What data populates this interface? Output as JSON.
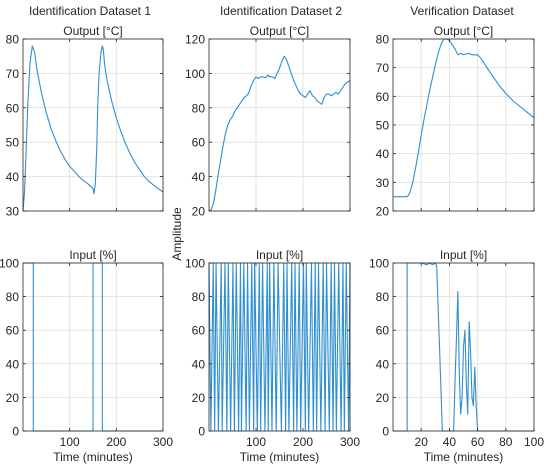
{
  "figure": {
    "shared_ylabel": "Amplitude",
    "column_titles": [
      "Identification Dataset 1",
      "Identification Dataset 2",
      "Verification Dataset"
    ]
  },
  "colors": {
    "line": "#2f8fd0",
    "grid": "#e3e3e3",
    "axes": "#262626"
  },
  "chart_data": [
    {
      "type": "line",
      "title": "Output [°C]",
      "xlabel": "",
      "ylabel": "",
      "xlim": [
        0,
        300
      ],
      "ylim": [
        30,
        80
      ],
      "xticks": [
        100,
        200,
        300
      ],
      "yticks": [
        30,
        40,
        50,
        60,
        70,
        80
      ],
      "xtick_labels_shown": false,
      "grid": true,
      "series": [
        {
          "x": [
            0,
            3,
            6,
            10,
            15,
            20,
            25,
            30,
            40,
            50,
            60,
            70,
            80,
            90,
            100,
            110,
            120,
            130,
            140,
            150,
            152,
            155,
            158,
            160,
            163,
            167,
            170,
            172,
            175,
            180,
            190,
            200,
            210,
            220,
            230,
            240,
            250,
            260,
            270,
            280,
            290,
            300
          ],
          "y": [
            30,
            35,
            45,
            60,
            73,
            78,
            76,
            71,
            64,
            58.5,
            54,
            50.5,
            47.5,
            45,
            43,
            41.5,
            40,
            38.8,
            37.8,
            36.5,
            35,
            38,
            48,
            60,
            70,
            76,
            78,
            77,
            72.5,
            68,
            62,
            57,
            53,
            49.5,
            46.5,
            44,
            42,
            40,
            38.6,
            37.5,
            36.5,
            35.5
          ]
        }
      ]
    },
    {
      "type": "line",
      "title": "Output [°C]",
      "xlabel": "",
      "ylabel": "",
      "xlim": [
        0,
        300
      ],
      "ylim": [
        20,
        120
      ],
      "xticks": [
        100,
        200,
        300
      ],
      "yticks": [
        20,
        40,
        60,
        80,
        100,
        120
      ],
      "xtick_labels_shown": false,
      "grid": true,
      "series": [
        {
          "x": [
            0,
            5,
            10,
            15,
            20,
            25,
            30,
            35,
            40,
            45,
            50,
            55,
            60,
            65,
            70,
            75,
            80,
            85,
            90,
            95,
            100,
            105,
            110,
            115,
            120,
            125,
            130,
            135,
            140,
            145,
            150,
            155,
            160,
            165,
            170,
            175,
            180,
            185,
            190,
            195,
            200,
            205,
            210,
            215,
            220,
            225,
            230,
            235,
            240,
            245,
            250,
            255,
            260,
            265,
            270,
            275,
            280,
            285,
            290,
            295,
            300
          ],
          "y": [
            20,
            21,
            25,
            33,
            42,
            50,
            58,
            65,
            70,
            73,
            75,
            78,
            80,
            82,
            84,
            86,
            87,
            89,
            93,
            96,
            98,
            97,
            98,
            98,
            97.5,
            99,
            98,
            98,
            97,
            100,
            103,
            107,
            110,
            108,
            104,
            100,
            96,
            93,
            90,
            88,
            87,
            86,
            88,
            90,
            87,
            86,
            84,
            83,
            82,
            86,
            88,
            88,
            87,
            88,
            89,
            88,
            90,
            92,
            94,
            95,
            96
          ]
        }
      ]
    },
    {
      "type": "line",
      "title": "Output [°C]",
      "xlabel": "",
      "ylabel": "",
      "xlim": [
        0,
        100
      ],
      "ylim": [
        20,
        80
      ],
      "xticks": [
        20,
        40,
        60,
        80,
        100
      ],
      "yticks": [
        20,
        30,
        40,
        50,
        60,
        70,
        80
      ],
      "xtick_labels_shown": false,
      "grid": true,
      "series": [
        {
          "x": [
            0,
            5,
            10,
            11,
            12,
            14,
            16,
            18,
            20,
            22,
            24,
            26,
            28,
            30,
            32,
            34,
            36,
            38,
            40,
            42,
            44,
            46,
            48,
            50,
            52,
            54,
            56,
            58,
            60,
            62,
            64,
            66,
            70,
            75,
            80,
            85,
            90,
            95,
            100
          ],
          "y": [
            25,
            25,
            25,
            25.5,
            26.5,
            30,
            35,
            40.5,
            46.5,
            52,
            57,
            62,
            66.5,
            71,
            75,
            78,
            80,
            80,
            79.5,
            78,
            76.5,
            74.5,
            75,
            74.5,
            74.8,
            75,
            74.5,
            74.5,
            74.5,
            73.5,
            72,
            70.5,
            67.5,
            64,
            61,
            58.5,
            56.5,
            54.5,
            52.5
          ]
        }
      ]
    },
    {
      "type": "line",
      "title": "Input [%]",
      "xlabel": "Time (minutes)",
      "ylabel": "",
      "xlim": [
        0,
        300
      ],
      "ylim": [
        0,
        100
      ],
      "xticks": [
        100,
        200,
        300
      ],
      "yticks": [
        0,
        20,
        40,
        60,
        80,
        100
      ],
      "grid": true,
      "series": [
        {
          "x": [
            0,
            22,
            22,
            150,
            150,
            170,
            170,
            300
          ],
          "y": [
            100,
            100,
            0,
            0,
            100,
            100,
            0,
            0
          ]
        }
      ]
    },
    {
      "type": "line",
      "title": "Input [%]",
      "xlabel": "Time (minutes)",
      "ylabel": "",
      "xlim": [
        0,
        300
      ],
      "ylim": [
        0,
        100
      ],
      "xticks": [
        100,
        200,
        300
      ],
      "yticks": [
        0,
        20,
        40,
        60,
        80,
        100
      ],
      "grid": true,
      "series": [
        {
          "x": [
            0,
            4,
            9,
            12,
            15,
            20,
            26,
            28,
            34,
            38,
            41,
            46,
            51,
            54,
            58,
            63,
            67,
            69,
            74,
            79,
            82,
            86,
            91,
            95,
            97,
            103,
            107,
            110,
            114,
            119,
            124,
            126,
            129,
            134,
            138,
            143,
            147,
            154,
            159,
            163,
            166,
            170,
            176,
            180,
            183,
            187,
            192,
            195,
            201,
            205,
            207,
            212,
            218,
            222,
            226,
            229,
            233,
            238,
            243,
            247,
            250,
            256,
            260,
            264,
            267,
            271,
            276,
            281,
            285,
            288,
            292,
            297,
            300
          ],
          "y": [
            100,
            0,
            100,
            0,
            100,
            0,
            100,
            0,
            100,
            0,
            100,
            0,
            100,
            0,
            100,
            0,
            100,
            0,
            100,
            0,
            100,
            0,
            100,
            0,
            100,
            0,
            100,
            0,
            100,
            0,
            100,
            0,
            100,
            0,
            100,
            0,
            100,
            0,
            100,
            0,
            100,
            0,
            100,
            0,
            100,
            0,
            100,
            0,
            100,
            0,
            100,
            0,
            100,
            0,
            100,
            0,
            100,
            0,
            100,
            0,
            100,
            0,
            100,
            0,
            100,
            0,
            100,
            0,
            100,
            0,
            100,
            0,
            100
          ]
        }
      ]
    },
    {
      "type": "line",
      "title": "Input [%]",
      "xlabel": "Time (minutes)",
      "ylabel": "",
      "xlim": [
        0,
        100
      ],
      "ylim": [
        0,
        100
      ],
      "xticks": [
        20,
        40,
        60,
        80,
        100
      ],
      "yticks": [
        0,
        20,
        40,
        60,
        80,
        100
      ],
      "grid": true,
      "series": [
        {
          "x": [
            0,
            10,
            10,
            20,
            24,
            26,
            28,
            30,
            31,
            33,
            35,
            36,
            40,
            43,
            44,
            45,
            46,
            47,
            48,
            49,
            50,
            51,
            52,
            53,
            54,
            55,
            56,
            57,
            58,
            59,
            60,
            100
          ],
          "y": [
            0,
            0,
            100,
            100,
            99,
            100,
            99,
            100,
            98,
            50,
            0,
            0,
            0,
            0,
            30,
            55,
            83,
            35,
            10,
            20,
            50,
            60,
            28,
            10,
            65,
            48,
            20,
            15,
            38,
            15,
            0,
            0
          ]
        }
      ]
    }
  ]
}
